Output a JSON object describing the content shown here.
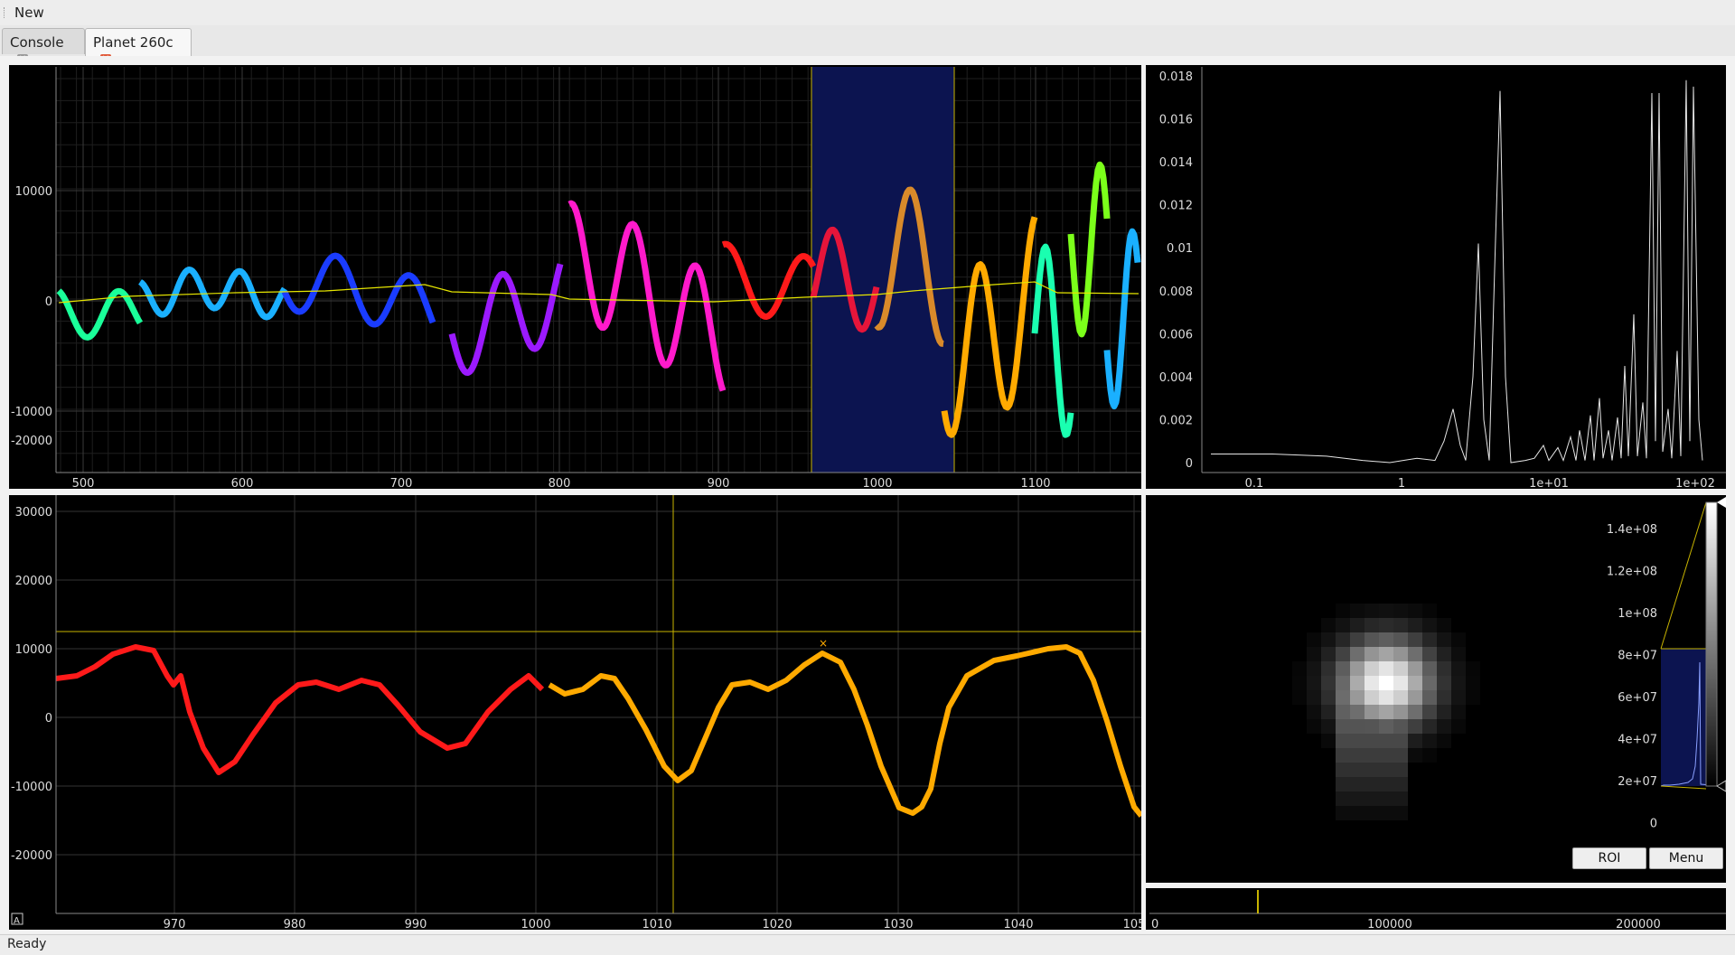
{
  "menubar": {
    "new_label": "New"
  },
  "tabs": [
    {
      "label": "Console"
    },
    {
      "label": "Planet 260c"
    }
  ],
  "status": {
    "text": "Ready"
  },
  "lightcurve_plot": {
    "x_ticks": [
      "500",
      "600",
      "700",
      "800",
      "900",
      "1000",
      "1100"
    ],
    "y_ticks": [
      "10000",
      "0",
      "-10000",
      "-20000"
    ]
  },
  "periodogram_plot": {
    "x_ticks": [
      "0.1",
      "1",
      "1e+01",
      "1e+02"
    ],
    "y_ticks": [
      "0.018",
      "0.016",
      "0.014",
      "0.012",
      "0.01",
      "0.008",
      "0.006",
      "0.004",
      "0.002",
      "0"
    ]
  },
  "zoom_plot": {
    "x_ticks": [
      "970",
      "980",
      "990",
      "1000",
      "1010",
      "1020",
      "1030",
      "1040",
      "105"
    ],
    "y_ticks": [
      "30000",
      "20000",
      "10000",
      "0",
      "-10000",
      "-20000"
    ],
    "auto_scale_label": "A"
  },
  "image_view": {
    "histogram_ticks": [
      "1.4e+08",
      "1.2e+08",
      "1e+08",
      "8e+07",
      "6e+07",
      "4e+07",
      "2e+07",
      "0"
    ],
    "roi_button": "ROI",
    "menu_button": "Menu"
  },
  "timeline": {
    "ticks": [
      "0",
      "100000",
      "200000"
    ]
  },
  "colors": {
    "grid": "#3a3a3a",
    "axis_text": "#dddddd",
    "selection_region": "#0c1450",
    "trend_line": "#e6e600",
    "zoom_red": "#ff1a1a",
    "zoom_orange": "#ffaa00"
  }
}
